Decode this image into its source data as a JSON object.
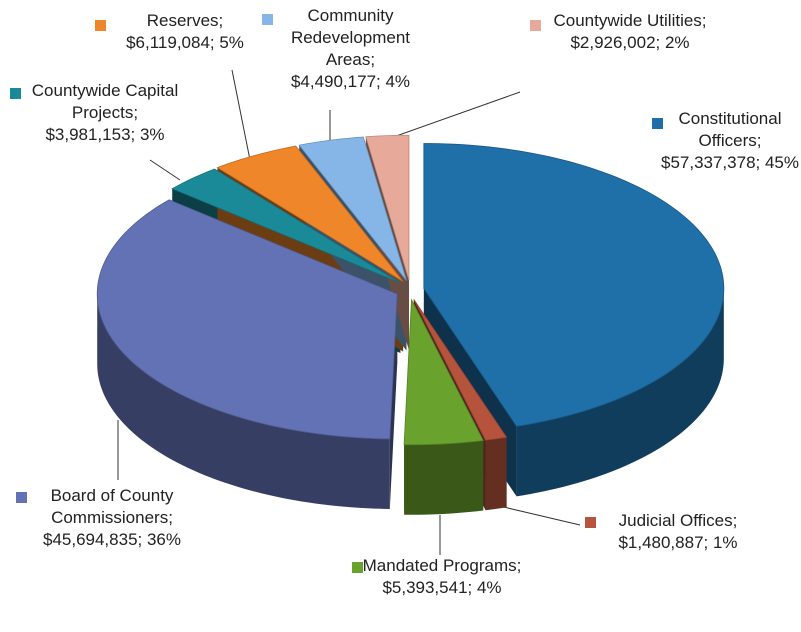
{
  "chart_data": {
    "type": "pie",
    "categories": [
      "Constitutional Officers;",
      "Judicial Offices;",
      "Mandated Programs;",
      "Board of County Commissioners;",
      "Countywide Capital Projects;",
      "Reserves;",
      "Community Redevelopment Areas;",
      "Countywide Utilities;"
    ],
    "values": [
      57337378,
      1480887,
      5393541,
      45694835,
      3981153,
      6119084,
      4490177,
      2926002
    ],
    "value_labels": [
      "$57,337,378; 45%",
      "$1,480,887; 1%",
      "$5,393,541; 4%",
      "$45,694,835; 36%",
      "$3,981,153; 3%",
      "$6,119,084; 5%",
      "$4,490,177; 4%",
      "$2,926,002; 2%"
    ],
    "colors": [
      "#1f6fa8",
      "#b5533c",
      "#6aa22e",
      "#6272b4",
      "#1a8a99",
      "#f0862a",
      "#86b6e8",
      "#e7aa9a"
    ]
  }
}
